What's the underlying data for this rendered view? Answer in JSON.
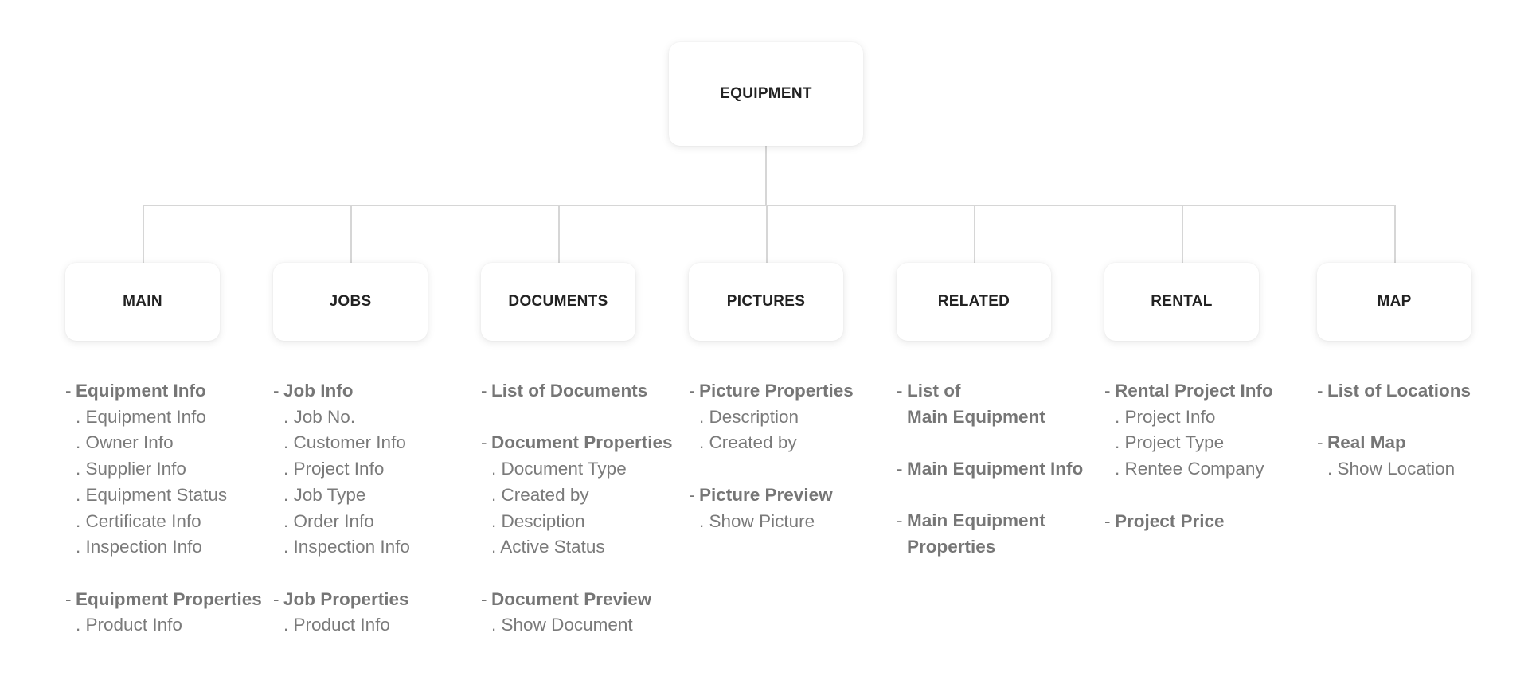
{
  "root": {
    "label": "EQUIPMENT"
  },
  "categories": [
    {
      "label": "MAIN",
      "sections": [
        {
          "title": "Equipment Info",
          "items": [
            "Equipment Info",
            "Owner Info",
            "Supplier Info",
            "Equipment Status",
            "Certificate Info",
            "Inspection Info"
          ]
        },
        {
          "title": "Equipment Properties",
          "items": [
            "Product Info"
          ]
        }
      ]
    },
    {
      "label": "JOBS",
      "sections": [
        {
          "title": "Job Info",
          "items": [
            "Job No.",
            "Customer Info",
            "Project Info",
            "Job Type",
            "Order Info",
            "Inspection Info"
          ]
        },
        {
          "title": "Job Properties",
          "items": [
            "Product Info"
          ]
        }
      ]
    },
    {
      "label": "DOCUMENTS",
      "sections": [
        {
          "title": "List of Documents",
          "items": []
        },
        {
          "title": "Document Properties",
          "items": [
            "Document Type",
            "Created by",
            "Desciption",
            "Active Status"
          ]
        },
        {
          "title": "Document Preview",
          "items": [
            "Show Document"
          ]
        }
      ]
    },
    {
      "label": "PICTURES",
      "sections": [
        {
          "title": "Picture Properties",
          "items": [
            "Description",
            "Created by"
          ]
        },
        {
          "title": "Picture Preview",
          "items": [
            "Show Picture"
          ]
        }
      ]
    },
    {
      "label": "RELATED",
      "sections": [
        {
          "title": "List of\nMain Equipment",
          "items": []
        },
        {
          "title": "Main Equipment Info",
          "items": []
        },
        {
          "title": "Main Equipment\nProperties",
          "items": []
        }
      ]
    },
    {
      "label": "RENTAL",
      "sections": [
        {
          "title": "Rental Project Info",
          "items": [
            "Project Info",
            "Project Type",
            "Rentee Company"
          ]
        },
        {
          "title": "Project Price",
          "items": []
        }
      ]
    },
    {
      "label": "MAP",
      "sections": [
        {
          "title": "List of Locations",
          "items": []
        },
        {
          "title": "Real Map",
          "items": [
            "Show Location"
          ]
        }
      ]
    }
  ],
  "glyphs": {
    "section_marker": "-",
    "item_marker": "."
  }
}
